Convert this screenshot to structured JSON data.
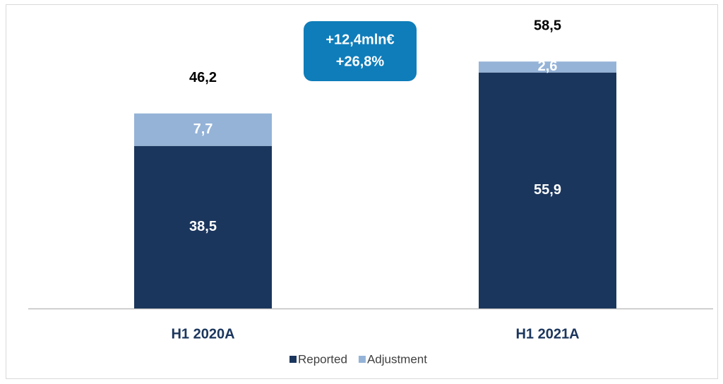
{
  "chart_data": {
    "type": "stacked_bar",
    "categories": [
      "H1 2020A",
      "H1 2021A"
    ],
    "series": [
      {
        "name": "Reported",
        "color": "#1b365d",
        "values": [
          38.5,
          55.9
        ],
        "value_labels": [
          "38,5",
          "55,9"
        ]
      },
      {
        "name": "Adjustment",
        "color": "#95b3d7",
        "values": [
          7.7,
          2.6
        ],
        "value_labels": [
          "7,7",
          "2,6"
        ]
      }
    ],
    "totals": [
      46.2,
      58.5
    ],
    "total_labels": [
      "46,2",
      "58,5"
    ],
    "annotation": {
      "lines": [
        "+12,4mln€",
        "+26,8%"
      ],
      "color": "#0f7dba"
    },
    "legend": "bottom"
  }
}
